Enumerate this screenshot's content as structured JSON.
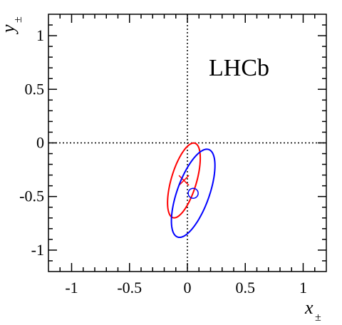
{
  "chart_data": {
    "type": "scatter",
    "title": "",
    "annotation": "LHCb",
    "xlabel": {
      "base": "x",
      "subscript": "±"
    },
    "ylabel": {
      "base": "y",
      "subscript": "±"
    },
    "xlim": [
      -1.2,
      1.2
    ],
    "ylim": [
      -1.2,
      1.2
    ],
    "xticks": [
      -1,
      -0.5,
      0,
      0.5,
      1
    ],
    "yticks": [
      -1,
      -0.5,
      0,
      0.5,
      1
    ],
    "xtick_labels": [
      "-1",
      "-0.5",
      "0",
      "0.5",
      "1"
    ],
    "ytick_labels": [
      "-1",
      "-0.5",
      "0",
      "0.5",
      "1"
    ],
    "grid": false,
    "reference_lines": {
      "x": 0,
      "y": 0,
      "style": "dotted"
    },
    "series": [
      {
        "color": "#ff0000",
        "marker": "x",
        "center": [
          -0.03,
          -0.35
        ],
        "contour": {
          "rx": 0.11,
          "ry": 0.36,
          "tilt_deg": 15
        }
      },
      {
        "color": "#0000ff",
        "marker": "o",
        "center": [
          0.05,
          -0.47
        ],
        "contour": {
          "rx": 0.14,
          "ry": 0.43,
          "tilt_deg": 18
        }
      }
    ]
  }
}
